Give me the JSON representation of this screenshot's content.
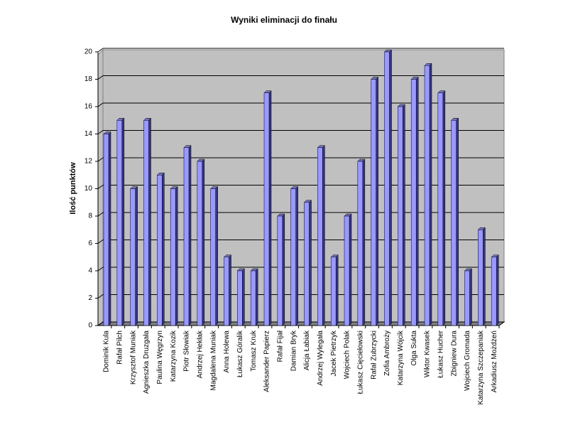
{
  "chart_data": {
    "type": "bar",
    "title": "Wyniki eliminacji do finału",
    "y_label": "Ilość punktów",
    "categories": [
      "Dominik Kula",
      "Rafał Pilch",
      "Krzysztof Muniak",
      "Agnieszka Druzgała",
      "Paulina Węgrzyn",
      "Katarzyna Kozik",
      "Piotr Słowiak",
      "Andrzej Hekłak",
      "Magdalena Muniak",
      "Anna Holewa",
      "Łukasz Góralik",
      "Tomasz Kruk",
      "Aleksander Papierz",
      "Rafał Fijał",
      "Damian Bryk",
      "Alicja Łabiak",
      "Andrzej Wylegała",
      "Jacek Pietrzyk",
      "Wojciech Polak",
      "Łukasz Cięciełowski",
      "Rafał Zubrzycki",
      "Zofia Ambroży",
      "Katarzyna Wójcik",
      "Olga Sukta",
      "Wiktor Kwasek",
      "Łukasz Hucher",
      "Zbigniew Dura",
      "Wojciech Gromada",
      "Katarzyna Szczepaniak",
      "Arkadiusz Możdżeń"
    ],
    "values": [
      14,
      15,
      10,
      15,
      11,
      10,
      13,
      12,
      10,
      5,
      4,
      4,
      17,
      8,
      10,
      9,
      13,
      5,
      8,
      12,
      18,
      20,
      16,
      18,
      19,
      17,
      15,
      4,
      7,
      5
    ],
    "color": "#9999ff",
    "ylim": [
      0,
      20
    ],
    "yticks": [
      0,
      2,
      4,
      6,
      8,
      10,
      12,
      14,
      16,
      18,
      20
    ],
    "grid": true
  }
}
